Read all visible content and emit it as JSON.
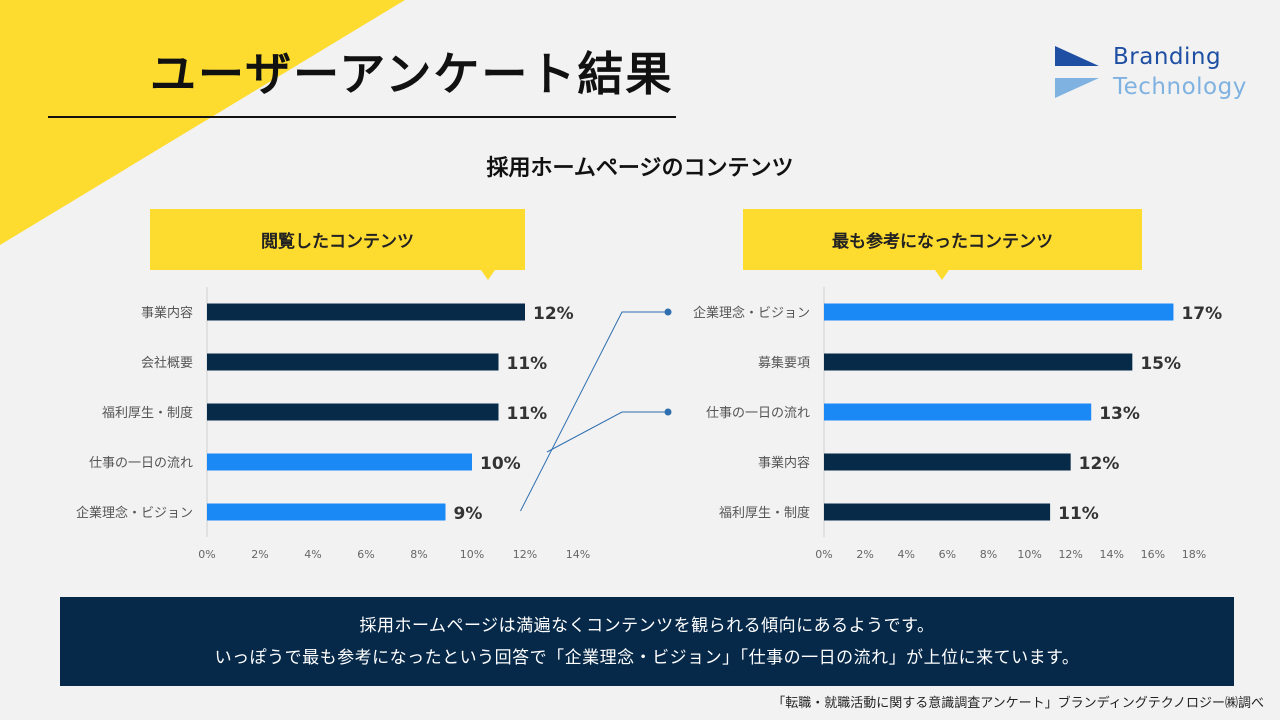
{
  "header": {
    "title": "ユーザーアンケート結果"
  },
  "logo": {
    "line1": "Branding",
    "line2": "Technology"
  },
  "subtitle": "採用ホームページのコンテンツ",
  "callouts": {
    "left": "閲覧したコンテンツ",
    "right": "最も参考になったコンテンツ"
  },
  "chart_data": [
    {
      "type": "bar",
      "orientation": "horizontal",
      "title": "閲覧したコンテンツ",
      "categories": [
        "事業内容",
        "会社概要",
        "福利厚生・制度",
        "仕事の一日の流れ",
        "企業理念・ビジョン"
      ],
      "values": [
        12,
        11,
        11,
        10,
        9
      ],
      "value_labels": [
        "12%",
        "11%",
        "11%",
        "10%",
        "9%"
      ],
      "highlighted": [
        false,
        false,
        false,
        true,
        true
      ],
      "xlim": [
        0,
        14
      ],
      "xticks": [
        "0%",
        "2%",
        "4%",
        "6%",
        "8%",
        "10%",
        "12%",
        "14%"
      ]
    },
    {
      "type": "bar",
      "orientation": "horizontal",
      "title": "最も参考になったコンテンツ",
      "categories": [
        "企業理念・ビジョン",
        "募集要項",
        "仕事の一日の流れ",
        "事業内容",
        "福利厚生・制度"
      ],
      "values": [
        17,
        15,
        13,
        12,
        11
      ],
      "value_labels": [
        "17%",
        "15%",
        "13%",
        "12%",
        "11%"
      ],
      "highlighted": [
        true,
        false,
        true,
        false,
        false
      ],
      "xlim": [
        0,
        18
      ],
      "xticks": [
        "0%",
        "2%",
        "4%",
        "6%",
        "8%",
        "10%",
        "12%",
        "14%",
        "16%",
        "18%"
      ]
    }
  ],
  "colors": {
    "dark": "#062a48",
    "highlight": "#1a88f5",
    "yellow": "#fddb2f",
    "connector": "#2f6fb0"
  },
  "summary": {
    "line1": "採用ホームページは満遍なくコンテンツを観られる傾向にあるようです。",
    "line2": "いっぽうで最も参考になったという回答で「企業理念・ビジョン」「仕事の一日の流れ」が上位に来ています。"
  },
  "source": "「転職・就職活動に関する意識調査アンケート」ブランディングテクノロジー㈱調べ"
}
